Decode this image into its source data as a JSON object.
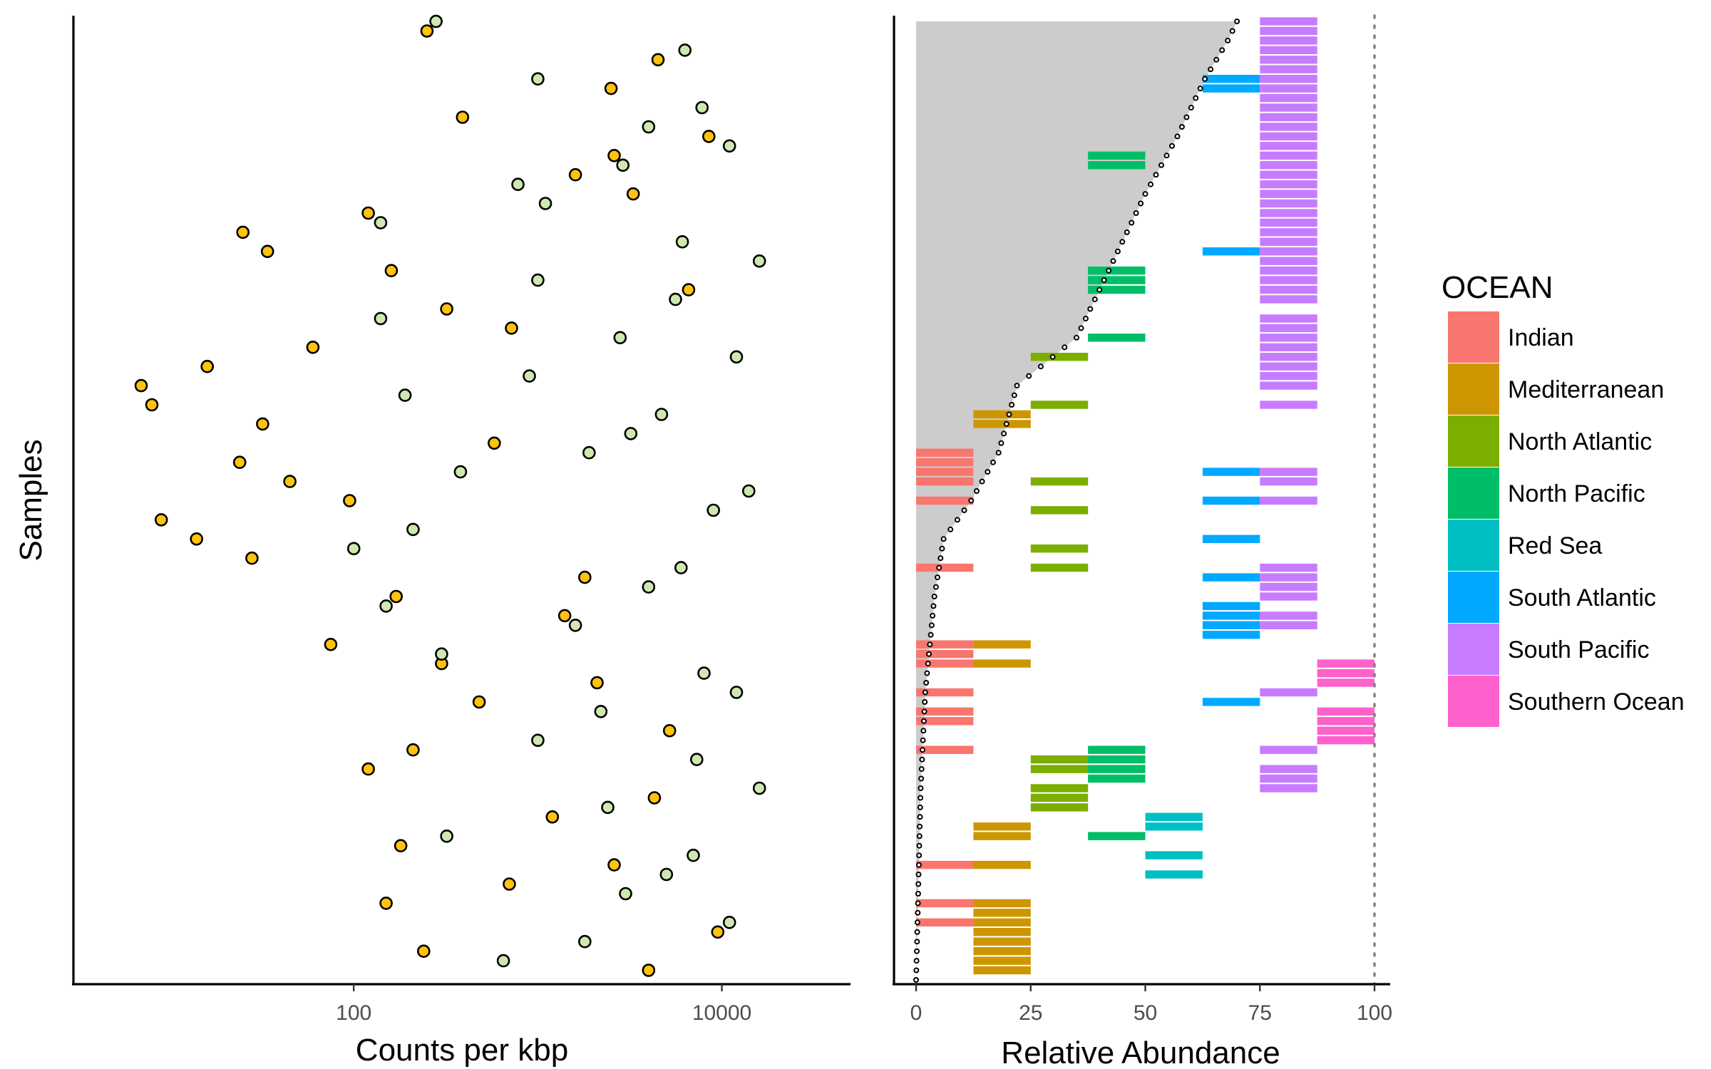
{
  "chart_data": [
    {
      "type": "scatter",
      "xlabel": "Counts per kbp",
      "ylabel": "Samples",
      "x_scale": "log",
      "xlim": [
        3,
        50000
      ],
      "x_ticks": [
        100,
        10000
      ],
      "x_tick_labels": [
        "100",
        "10000"
      ],
      "series": [
        {
          "name": "",
          "color": "#ffc20e",
          "points": [
            {
              "sample": 1,
              "x": 4000
            },
            {
              "sample": 3,
              "x": 240
            },
            {
              "sample": 5,
              "x": 9500
            },
            {
              "sample": 8,
              "x": 150
            },
            {
              "sample": 10,
              "x": 700
            },
            {
              "sample": 12,
              "x": 2600
            },
            {
              "sample": 14,
              "x": 180
            },
            {
              "sample": 17,
              "x": 1200
            },
            {
              "sample": 19,
              "x": 4300
            },
            {
              "sample": 22,
              "x": 120
            },
            {
              "sample": 24,
              "x": 210
            },
            {
              "sample": 26,
              "x": 5200
            },
            {
              "sample": 29,
              "x": 480
            },
            {
              "sample": 31,
              "x": 2100
            },
            {
              "sample": 33,
              "x": 300
            },
            {
              "sample": 35,
              "x": 75
            },
            {
              "sample": 38,
              "x": 1400
            },
            {
              "sample": 40,
              "x": 170
            },
            {
              "sample": 42,
              "x": 1800
            },
            {
              "sample": 44,
              "x": 28
            },
            {
              "sample": 46,
              "x": 14
            },
            {
              "sample": 48,
              "x": 9
            },
            {
              "sample": 50,
              "x": 95
            },
            {
              "sample": 52,
              "x": 45
            },
            {
              "sample": 54,
              "x": 24
            },
            {
              "sample": 56,
              "x": 580
            },
            {
              "sample": 58,
              "x": 32
            },
            {
              "sample": 60,
              "x": 8
            },
            {
              "sample": 62,
              "x": 7
            },
            {
              "sample": 64,
              "x": 16
            },
            {
              "sample": 66,
              "x": 60
            },
            {
              "sample": 68,
              "x": 720
            },
            {
              "sample": 70,
              "x": 320
            },
            {
              "sample": 72,
              "x": 6600
            },
            {
              "sample": 74,
              "x": 160
            },
            {
              "sample": 76,
              "x": 34
            },
            {
              "sample": 78,
              "x": 25
            },
            {
              "sample": 80,
              "x": 120
            },
            {
              "sample": 82,
              "x": 3300
            },
            {
              "sample": 84,
              "x": 1600
            },
            {
              "sample": 86,
              "x": 2600
            },
            {
              "sample": 88,
              "x": 8500
            },
            {
              "sample": 90,
              "x": 390
            },
            {
              "sample": 93,
              "x": 2500
            },
            {
              "sample": 96,
              "x": 4500
            },
            {
              "sample": 99,
              "x": 250
            }
          ]
        },
        {
          "name": "",
          "color": "#cfe8b0",
          "points": [
            {
              "sample": 2,
              "x": 650
            },
            {
              "sample": 4,
              "x": 1800
            },
            {
              "sample": 6,
              "x": 11000
            },
            {
              "sample": 9,
              "x": 3000
            },
            {
              "sample": 11,
              "x": 5000
            },
            {
              "sample": 13,
              "x": 7000
            },
            {
              "sample": 15,
              "x": 320
            },
            {
              "sample": 18,
              "x": 2400
            },
            {
              "sample": 20,
              "x": 16000
            },
            {
              "sample": 23,
              "x": 7300
            },
            {
              "sample": 25,
              "x": 1000
            },
            {
              "sample": 28,
              "x": 2200
            },
            {
              "sample": 30,
              "x": 12000
            },
            {
              "sample": 32,
              "x": 8000
            },
            {
              "sample": 34,
              "x": 300
            },
            {
              "sample": 37,
              "x": 1600
            },
            {
              "sample": 39,
              "x": 150
            },
            {
              "sample": 41,
              "x": 4000
            },
            {
              "sample": 43,
              "x": 6000
            },
            {
              "sample": 45,
              "x": 100
            },
            {
              "sample": 47,
              "x": 210
            },
            {
              "sample": 49,
              "x": 9000
            },
            {
              "sample": 51,
              "x": 14000
            },
            {
              "sample": 53,
              "x": 380
            },
            {
              "sample": 55,
              "x": 1900
            },
            {
              "sample": 57,
              "x": 3200
            },
            {
              "sample": 59,
              "x": 4700
            },
            {
              "sample": 61,
              "x": 190
            },
            {
              "sample": 63,
              "x": 900
            },
            {
              "sample": 65,
              "x": 12000
            },
            {
              "sample": 67,
              "x": 2800
            },
            {
              "sample": 69,
              "x": 140
            },
            {
              "sample": 71,
              "x": 5600
            },
            {
              "sample": 73,
              "x": 1000
            },
            {
              "sample": 75,
              "x": 16000
            },
            {
              "sample": 77,
              "x": 6100
            },
            {
              "sample": 79,
              "x": 140
            },
            {
              "sample": 81,
              "x": 1100
            },
            {
              "sample": 83,
              "x": 780
            },
            {
              "sample": 85,
              "x": 2900
            },
            {
              "sample": 87,
              "x": 11000
            },
            {
              "sample": 89,
              "x": 4000
            },
            {
              "sample": 91,
              "x": 7800
            },
            {
              "sample": 94,
              "x": 1000
            },
            {
              "sample": 97,
              "x": 6300
            },
            {
              "sample": 100,
              "x": 280
            }
          ]
        }
      ]
    },
    {
      "type": "area",
      "xlabel": "Relative Abundance",
      "ylabel": "",
      "xlim": [
        0,
        100
      ],
      "x_ticks": [
        0,
        25,
        50,
        75,
        100
      ],
      "x_tick_labels": [
        "0",
        "25",
        "50",
        "75",
        "100"
      ],
      "reference_line": 100,
      "cumulative_curve": [
        {
          "sample": 0,
          "x": 0
        },
        {
          "sample": 10,
          "x": 0.5
        },
        {
          "sample": 20,
          "x": 1
        },
        {
          "sample": 30,
          "x": 2
        },
        {
          "sample": 40,
          "x": 4
        },
        {
          "sample": 46,
          "x": 6
        },
        {
          "sample": 50,
          "x": 12
        },
        {
          "sample": 55,
          "x": 18
        },
        {
          "sample": 62,
          "x": 22
        },
        {
          "sample": 67,
          "x": 35
        },
        {
          "sample": 75,
          "x": 43
        },
        {
          "sample": 82,
          "x": 50
        },
        {
          "sample": 88,
          "x": 57
        },
        {
          "sample": 94,
          "x": 63
        },
        {
          "sample": 98,
          "x": 68
        },
        {
          "sample": 100,
          "x": 70
        }
      ],
      "columns": [
        {
          "ocean": "Indian",
          "x_range": [
            0,
            12.5
          ],
          "samples": [
            6,
            8,
            12,
            24,
            27,
            28,
            30,
            33,
            34,
            35,
            43,
            50,
            52,
            53,
            54,
            55
          ]
        },
        {
          "ocean": "Mediterranean",
          "x_range": [
            12.5,
            25
          ],
          "samples": [
            1,
            2,
            3,
            4,
            5,
            6,
            7,
            8,
            12,
            15,
            16,
            33,
            35,
            58,
            59
          ]
        },
        {
          "ocean": "North Atlantic",
          "x_range": [
            25,
            37.5
          ],
          "samples": [
            18,
            19,
            20,
            22,
            23,
            43,
            45,
            49,
            52,
            60,
            65
          ]
        },
        {
          "ocean": "North Pacific",
          "x_range": [
            37.5,
            50
          ],
          "samples": [
            15,
            21,
            22,
            23,
            24,
            67,
            72,
            73,
            74,
            85,
            86
          ]
        },
        {
          "ocean": "Red Sea",
          "x_range": [
            50,
            62.5
          ],
          "samples": [
            11,
            13,
            16,
            17
          ]
        },
        {
          "ocean": "South Atlantic",
          "x_range": [
            62.5,
            75
          ],
          "samples": [
            29,
            36,
            37,
            38,
            39,
            42,
            46,
            50,
            53,
            76,
            93,
            94
          ]
        },
        {
          "ocean": "South Pacific",
          "x_range": [
            75,
            87.5
          ],
          "samples": [
            20,
            21,
            22,
            24,
            30,
            37,
            38,
            40,
            41,
            42,
            43,
            50,
            52,
            53,
            60,
            62,
            63,
            64,
            65,
            66,
            67,
            68,
            69,
            71,
            72,
            73,
            74,
            75,
            76,
            77,
            78,
            79,
            80,
            81,
            82,
            83,
            84,
            85,
            86,
            87,
            88,
            89,
            90,
            91,
            92,
            93,
            94,
            95,
            96,
            97,
            98,
            99,
            100
          ]
        },
        {
          "ocean": "Southern Ocean",
          "x_range": [
            87.5,
            100
          ],
          "samples": [
            25,
            26,
            27,
            28,
            31,
            32,
            33
          ]
        }
      ]
    }
  ],
  "legend": {
    "title": "OCEAN",
    "items": [
      {
        "label": "Indian",
        "color": "#f8766d"
      },
      {
        "label": "Mediterranean",
        "color": "#cd9600"
      },
      {
        "label": "North Atlantic",
        "color": "#7cae00"
      },
      {
        "label": "North Pacific",
        "color": "#00be67"
      },
      {
        "label": "Red Sea",
        "color": "#00bfc4"
      },
      {
        "label": "South Atlantic",
        "color": "#00a9ff"
      },
      {
        "label": "South Pacific",
        "color": "#c77cff"
      },
      {
        "label": "Southern Ocean",
        "color": "#ff61cc"
      }
    ]
  }
}
